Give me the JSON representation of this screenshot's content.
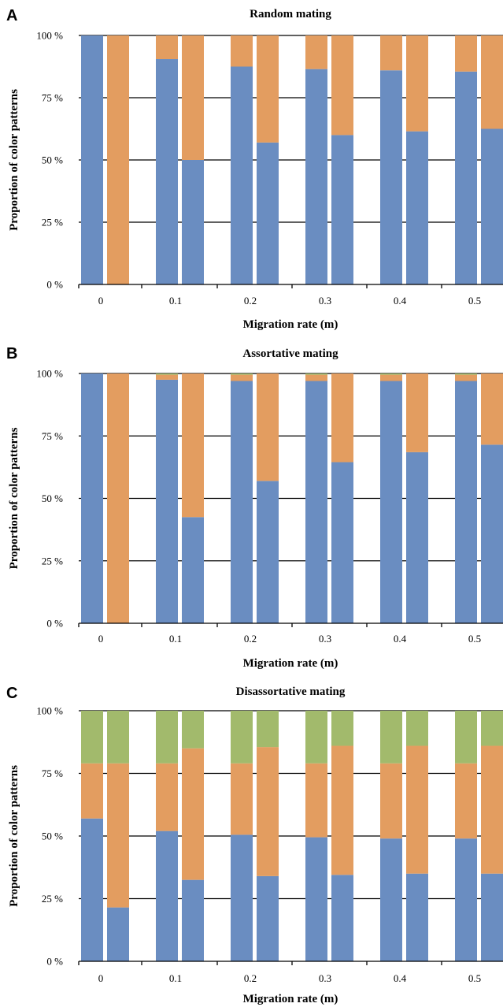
{
  "colors": {
    "blue": "#6A8DC1",
    "orange": "#E39D60",
    "green": "#A2BA6C"
  },
  "chart_data": [
    {
      "panel": "A",
      "type": "bar",
      "stacked": true,
      "title": "Random mating",
      "xlabel": "Migration rate (m)",
      "ylabel": "Proportion of color patterns",
      "ylim": [
        0,
        100
      ],
      "yticks": [
        "0 %",
        "25 %",
        "50 %",
        "75 %",
        "100 %"
      ],
      "categories": [
        "0",
        "0.1",
        "0.2",
        "0.3",
        "0.4",
        "0.5"
      ],
      "bars_per_category": 2,
      "series": [
        {
          "color": "blue",
          "values": [
            [
              100,
              0
            ],
            [
              90.5,
              50
            ],
            [
              87.5,
              57
            ],
            [
              86.5,
              60
            ],
            [
              86,
              61.5
            ],
            [
              85.5,
              62.5
            ]
          ]
        },
        {
          "color": "orange",
          "values": [
            [
              0,
              100
            ],
            [
              9.5,
              50
            ],
            [
              12.5,
              43
            ],
            [
              13.5,
              40
            ],
            [
              14,
              38.5
            ],
            [
              14.5,
              37.5
            ]
          ]
        },
        {
          "color": "green",
          "values": [
            [
              0,
              0
            ],
            [
              0,
              0
            ],
            [
              0,
              0
            ],
            [
              0,
              0
            ],
            [
              0,
              0
            ],
            [
              0,
              0
            ]
          ]
        }
      ]
    },
    {
      "panel": "B",
      "type": "bar",
      "stacked": true,
      "title": "Assortative mating",
      "xlabel": "Migration rate (m)",
      "ylabel": "Proportion of color patterns",
      "ylim": [
        0,
        100
      ],
      "yticks": [
        "0 %",
        "25 %",
        "50 %",
        "75 %",
        "100 %"
      ],
      "categories": [
        "0",
        "0.1",
        "0.2",
        "0.3",
        "0.4",
        "0.5"
      ],
      "bars_per_category": 2,
      "series": [
        {
          "color": "blue",
          "values": [
            [
              100,
              0
            ],
            [
              97.5,
              42.5
            ],
            [
              97,
              57
            ],
            [
              97,
              64.5
            ],
            [
              97,
              68.5
            ],
            [
              97,
              71.5
            ]
          ]
        },
        {
          "color": "orange",
          "values": [
            [
              0,
              100
            ],
            [
              2,
              57.5
            ],
            [
              2.5,
              43
            ],
            [
              2.5,
              35.5
            ],
            [
              2.5,
              31.5
            ],
            [
              2.5,
              28.5
            ]
          ]
        },
        {
          "color": "green",
          "values": [
            [
              0,
              0
            ],
            [
              0.5,
              0
            ],
            [
              0.5,
              0
            ],
            [
              0.5,
              0
            ],
            [
              0.5,
              0
            ],
            [
              0.5,
              0
            ]
          ]
        }
      ]
    },
    {
      "panel": "C",
      "type": "bar",
      "stacked": true,
      "title": "Disassortative mating",
      "xlabel": "Migration rate (m)",
      "ylabel": "Proportion of color patterns",
      "ylim": [
        0,
        100
      ],
      "yticks": [
        "0 %",
        "25 %",
        "50 %",
        "75 %",
        "100 %"
      ],
      "categories": [
        "0",
        "0.1",
        "0.2",
        "0.3",
        "0.4",
        "0.5"
      ],
      "bars_per_category": 2,
      "series": [
        {
          "color": "blue",
          "values": [
            [
              57,
              21.5
            ],
            [
              52,
              32.5
            ],
            [
              50.5,
              34
            ],
            [
              49.5,
              34.5
            ],
            [
              49,
              35
            ],
            [
              49,
              35
            ]
          ]
        },
        {
          "color": "orange",
          "values": [
            [
              22,
              57.5
            ],
            [
              27,
              52.5
            ],
            [
              28.5,
              51.5
            ],
            [
              29.5,
              51.5
            ],
            [
              30,
              51
            ],
            [
              30,
              51
            ]
          ]
        },
        {
          "color": "green",
          "values": [
            [
              21,
              21
            ],
            [
              21,
              15
            ],
            [
              21,
              14.5
            ],
            [
              21,
              14
            ],
            [
              21,
              14
            ],
            [
              21,
              14
            ]
          ]
        }
      ]
    }
  ]
}
